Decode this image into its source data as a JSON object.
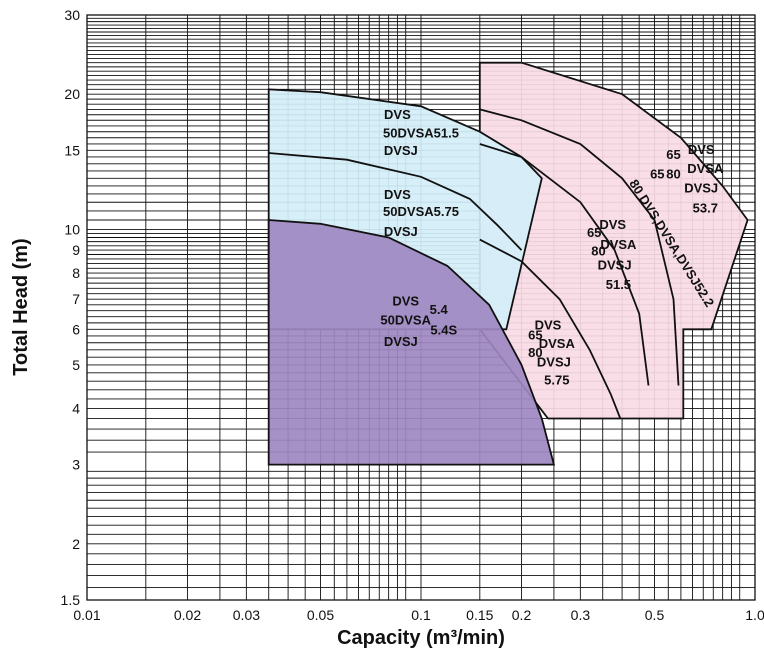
{
  "chart_data": {
    "type": "area",
    "xlabel": "Capacity (m³/min)",
    "ylabel": "Total Head (m)",
    "xscale": "log",
    "yscale": "log",
    "xlim": [
      0.01,
      1.0
    ],
    "ylim": [
      1.5,
      30
    ],
    "grid": true,
    "x_ticks": [
      {
        "value": 0.01,
        "label": "0.01"
      },
      {
        "value": 0.02,
        "label": "0.02"
      },
      {
        "value": 0.03,
        "label": "0.03"
      },
      {
        "value": 0.05,
        "label": "0.05"
      },
      {
        "value": 0.1,
        "label": "0.1"
      },
      {
        "value": 0.15,
        "label": "0.15"
      },
      {
        "value": 0.2,
        "label": "0.2"
      },
      {
        "value": 0.3,
        "label": "0.3"
      },
      {
        "value": 0.5,
        "label": "0.5"
      },
      {
        "value": 1.0,
        "label": "1.0"
      }
    ],
    "y_ticks": [
      {
        "value": 1.5,
        "label": "1.5"
      },
      {
        "value": 2,
        "label": "2"
      },
      {
        "value": 3,
        "label": "3"
      },
      {
        "value": 4,
        "label": "4"
      },
      {
        "value": 5,
        "label": "5"
      },
      {
        "value": 6,
        "label": "6"
      },
      {
        "value": 7,
        "label": "7"
      },
      {
        "value": 8,
        "label": "8"
      },
      {
        "value": 9,
        "label": "9"
      },
      {
        "value": 10,
        "label": "10"
      },
      {
        "value": 15,
        "label": "15"
      },
      {
        "value": 20,
        "label": "20"
      },
      {
        "value": 30,
        "label": "30"
      }
    ],
    "regions": [
      {
        "id": "zone-65-80-53.7",
        "fill": "#f9dbe5",
        "boundary": [
          [
            0.15,
            23.5
          ],
          [
            0.2,
            23.5
          ],
          [
            0.4,
            20
          ],
          [
            0.6,
            16
          ],
          [
            0.8,
            12.5
          ],
          [
            0.95,
            10.5
          ],
          [
            0.74,
            6
          ],
          [
            0.61,
            6
          ],
          [
            0.61,
            3.8
          ],
          [
            0.24,
            3.8
          ],
          [
            0.15,
            6
          ]
        ],
        "labels": [
          {
            "text": "65",
            "at": [
              0.57,
              14.6
            ]
          },
          {
            "text": "DVS",
            "at": [
              0.69,
              15.0
            ]
          },
          {
            "text": "80",
            "at": [
              0.57,
              13.2
            ]
          },
          {
            "text": "DVSA",
            "at": [
              0.71,
              13.6
            ]
          },
          {
            "text": "DVSJ",
            "at": [
              0.69,
              12.3
            ]
          },
          {
            "text": "53.7",
            "at": [
              0.71,
              11.1
            ]
          }
        ]
      },
      {
        "id": "curve-65-80-52.2",
        "labels": [
          {
            "text": "65",
            "at": [
              0.51,
              13.2
            ]
          },
          {
            "text": "80 DVS,DVSA,DVSJ52.2",
            "at": [
              0.56,
              9.3
            ],
            "rotate": 58
          }
        ]
      },
      {
        "id": "curve-65-80-51.5",
        "labels": [
          {
            "text": "65",
            "at": [
              0.33,
              9.8
            ]
          },
          {
            "text": "DVS",
            "at": [
              0.375,
              10.2
            ]
          },
          {
            "text": "80",
            "at": [
              0.34,
              8.9
            ]
          },
          {
            "text": "DVSA",
            "at": [
              0.39,
              9.2
            ]
          },
          {
            "text": "DVSJ",
            "at": [
              0.38,
              8.3
            ]
          },
          {
            "text": "51.5",
            "at": [
              0.39,
              7.5
            ]
          }
        ]
      },
      {
        "id": "curve-65-80-5.75",
        "labels": [
          {
            "text": "65",
            "at": [
              0.22,
              5.8
            ]
          },
          {
            "text": "DVS",
            "at": [
              0.24,
              6.1
            ]
          },
          {
            "text": "80",
            "at": [
              0.22,
              5.3
            ]
          },
          {
            "text": "DVSA",
            "at": [
              0.255,
              5.55
            ]
          },
          {
            "text": "DVSJ",
            "at": [
              0.25,
              5.05
            ]
          },
          {
            "text": "5.75",
            "at": [
              0.255,
              4.6
            ]
          }
        ]
      },
      {
        "id": "zone-50-51.5",
        "fill": "#d4eef9",
        "boundary": [
          [
            0.035,
            20.5
          ],
          [
            0.05,
            20.2
          ],
          [
            0.1,
            18.8
          ],
          [
            0.15,
            16.5
          ],
          [
            0.2,
            14.5
          ],
          [
            0.23,
            13
          ],
          [
            0.18,
            6
          ],
          [
            0.035,
            6
          ]
        ],
        "labels": [
          {
            "text": "DVS",
            "at": [
              0.085,
              17.9
            ]
          },
          {
            "text": "50DVSA51.5",
            "at": [
              0.1,
              16.3
            ]
          },
          {
            "text": "DVSJ",
            "at": [
              0.087,
              14.9
            ]
          }
        ]
      },
      {
        "id": "zone-50-5.75",
        "labels": [
          {
            "text": "DVS",
            "at": [
              0.085,
              11.9
            ]
          },
          {
            "text": "50DVSA5.75",
            "at": [
              0.1,
              10.9
            ]
          },
          {
            "text": "DVSJ",
            "at": [
              0.087,
              9.85
            ]
          }
        ]
      },
      {
        "id": "zone-50-5.4",
        "fill": "#9e88c1",
        "boundary": [
          [
            0.035,
            10.5
          ],
          [
            0.05,
            10.3
          ],
          [
            0.08,
            9.6
          ],
          [
            0.12,
            8.3
          ],
          [
            0.16,
            6.8
          ],
          [
            0.2,
            5
          ],
          [
            0.23,
            3.8
          ],
          [
            0.25,
            3
          ]
        ],
        "labels": [
          {
            "text": "DVS",
            "at": [
              0.09,
              6.9
            ]
          },
          {
            "text": "5.4",
            "at": [
              0.113,
              6.6
            ]
          },
          {
            "text": "50DVSA",
            "at": [
              0.09,
              6.25
            ]
          },
          {
            "text": "5.4S",
            "at": [
              0.117,
              5.95
            ]
          },
          {
            "text": "DVSJ",
            "at": [
              0.087,
              5.6
            ]
          }
        ]
      }
    ],
    "curves": [
      {
        "id": "curve-50-5.75",
        "points": [
          [
            0.035,
            14.8
          ],
          [
            0.06,
            14.3
          ],
          [
            0.1,
            13.1
          ],
          [
            0.14,
            11.7
          ],
          [
            0.17,
            10.2
          ],
          [
            0.2,
            9
          ]
        ]
      },
      {
        "id": "curve-65-80-5.75",
        "points": [
          [
            0.15,
            9.5
          ],
          [
            0.2,
            8.5
          ],
          [
            0.26,
            7
          ],
          [
            0.32,
            5.4
          ],
          [
            0.37,
            4.3
          ],
          [
            0.395,
            3.8
          ]
        ]
      },
      {
        "id": "curve-65-80-51.5",
        "points": [
          [
            0.15,
            15.5
          ],
          [
            0.2,
            14.5
          ],
          [
            0.3,
            11.5
          ],
          [
            0.38,
            9
          ],
          [
            0.45,
            6.5
          ],
          [
            0.48,
            4.5
          ]
        ]
      },
      {
        "id": "curve-65-80-52.2",
        "points": [
          [
            0.15,
            18.5
          ],
          [
            0.2,
            17.5
          ],
          [
            0.3,
            15.5
          ],
          [
            0.4,
            13
          ],
          [
            0.5,
            10.5
          ],
          [
            0.57,
            7
          ],
          [
            0.59,
            4.5
          ]
        ]
      }
    ]
  }
}
